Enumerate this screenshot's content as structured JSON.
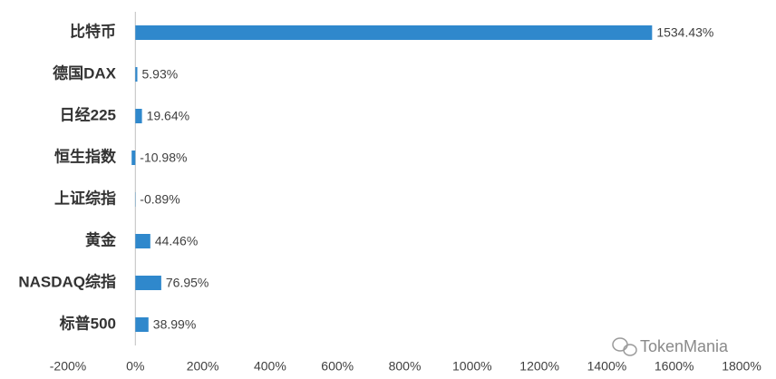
{
  "chart_data": {
    "type": "hbar",
    "categories": [
      "比特币",
      "德国DAX",
      "日经225",
      "恒生指数",
      "上证综指",
      "黄金",
      "NASDAQ综指",
      "标普500"
    ],
    "values": [
      1534.43,
      5.93,
      19.64,
      -10.98,
      -0.89,
      44.46,
      76.95,
      38.99
    ],
    "value_labels": [
      "1534.43%",
      "5.93%",
      "19.64%",
      "-10.98%",
      "-0.89%",
      "44.46%",
      "76.95%",
      "38.99%"
    ],
    "color": "#2f88cc",
    "xlim": [
      -200,
      1800
    ],
    "xticks": [
      {
        "value": -200,
        "label": "-200%"
      },
      {
        "value": 0,
        "label": "0%"
      },
      {
        "value": 200,
        "label": "200%"
      },
      {
        "value": 400,
        "label": "400%"
      },
      {
        "value": 600,
        "label": "600%"
      },
      {
        "value": 800,
        "label": "800%"
      },
      {
        "value": 1000,
        "label": "1000%"
      },
      {
        "value": 1200,
        "label": "1200%"
      },
      {
        "value": 1400,
        "label": "1400%"
      },
      {
        "value": 1600,
        "label": "1600%"
      },
      {
        "value": 1800,
        "label": "1800%"
      }
    ],
    "grid": false,
    "watermark": "TokenMania"
  }
}
